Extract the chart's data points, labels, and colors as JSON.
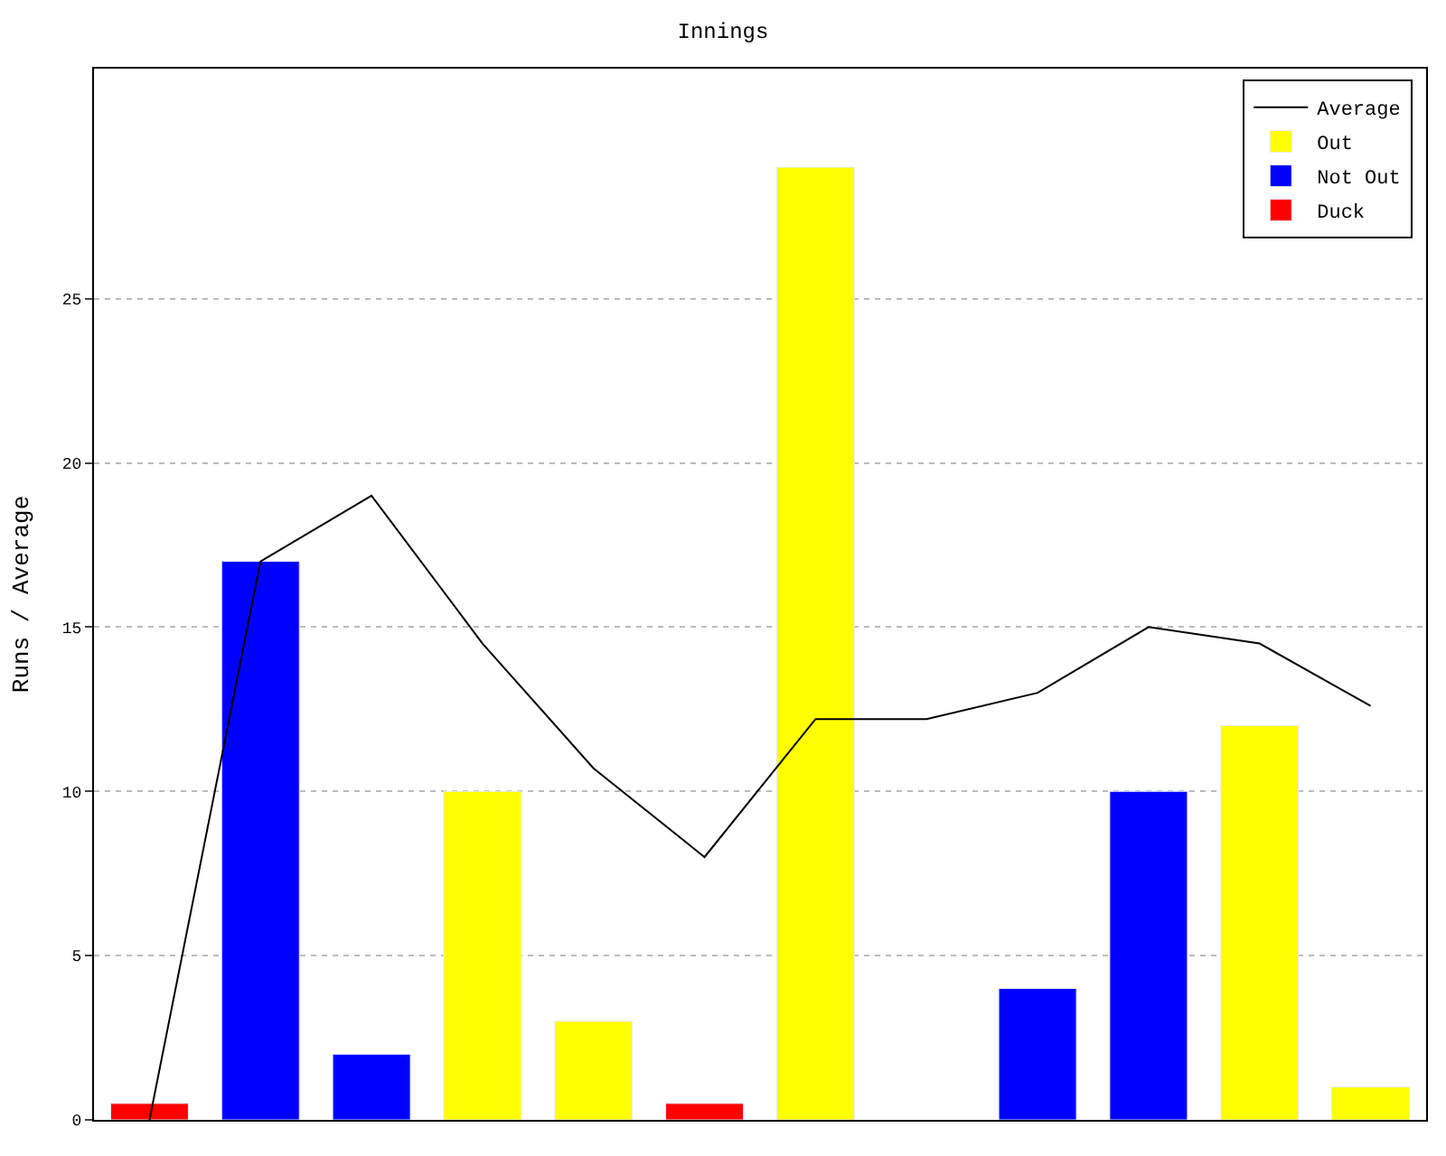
{
  "chart_data": {
    "type": "bar",
    "title": "Innings",
    "ylabel": "Runs / Average",
    "categories": [
      null,
      null,
      null,
      null,
      null,
      null,
      null,
      null,
      null,
      null,
      null,
      null
    ],
    "series": [
      {
        "name": "Average",
        "type": "line",
        "color": "#000000",
        "values": [
          0,
          17,
          19,
          14.5,
          10.7,
          8,
          12.2,
          12.2,
          13,
          15,
          14.5,
          12.6
        ]
      },
      {
        "name": "Out",
        "color": "#ffff00",
        "values": [
          null,
          null,
          null,
          10,
          3,
          null,
          29,
          null,
          null,
          null,
          12,
          1
        ]
      },
      {
        "name": "Not Out",
        "color": "#0000ff",
        "values": [
          null,
          17,
          2,
          null,
          null,
          null,
          null,
          null,
          4,
          10,
          null,
          null
        ]
      },
      {
        "name": "Duck",
        "color": "#ff0000",
        "values": [
          0.5,
          null,
          null,
          null,
          null,
          0.5,
          null,
          null,
          null,
          null,
          null,
          null
        ]
      }
    ],
    "ylim": [
      0,
      32
    ],
    "yticks": [
      0,
      5,
      10,
      15,
      20,
      25
    ],
    "grid": "y",
    "legend": "top right",
    "tick_labels": "y",
    "marker": "none",
    "line_style": "solid"
  }
}
